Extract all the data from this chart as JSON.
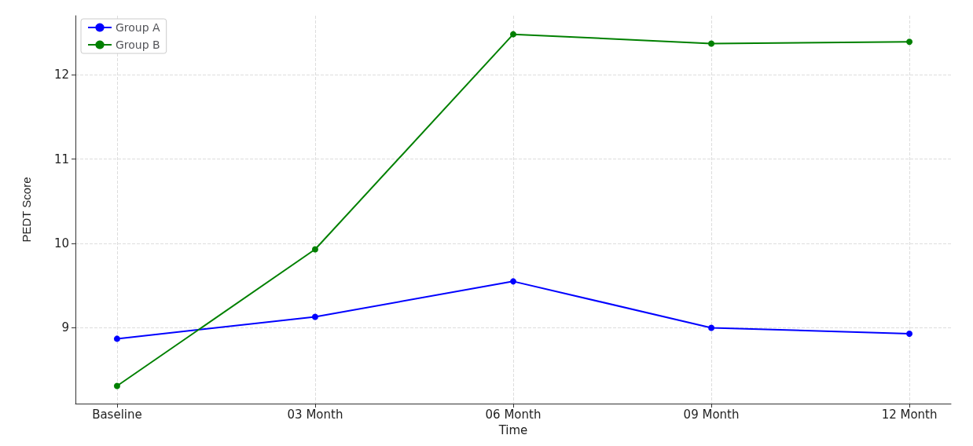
{
  "chart_data": {
    "type": "line",
    "xlabel": "Time",
    "ylabel": "PEDT Score",
    "categories": [
      "Baseline",
      "03 Month",
      "06 Month",
      "09 Month",
      "12 Month"
    ],
    "series": [
      {
        "name": "Group A",
        "color": "#0000ff",
        "values": [
          8.87,
          9.13,
          9.55,
          9.0,
          8.93
        ]
      },
      {
        "name": "Group B",
        "color": "#008000",
        "values": [
          8.31,
          9.93,
          12.48,
          12.37,
          12.39
        ]
      }
    ],
    "ylim": [
      8.1,
      12.7
    ],
    "yticks": [
      9,
      10,
      11,
      12
    ],
    "grid": true,
    "legend": "top left",
    "marker": "circle",
    "line_style": "solid"
  }
}
